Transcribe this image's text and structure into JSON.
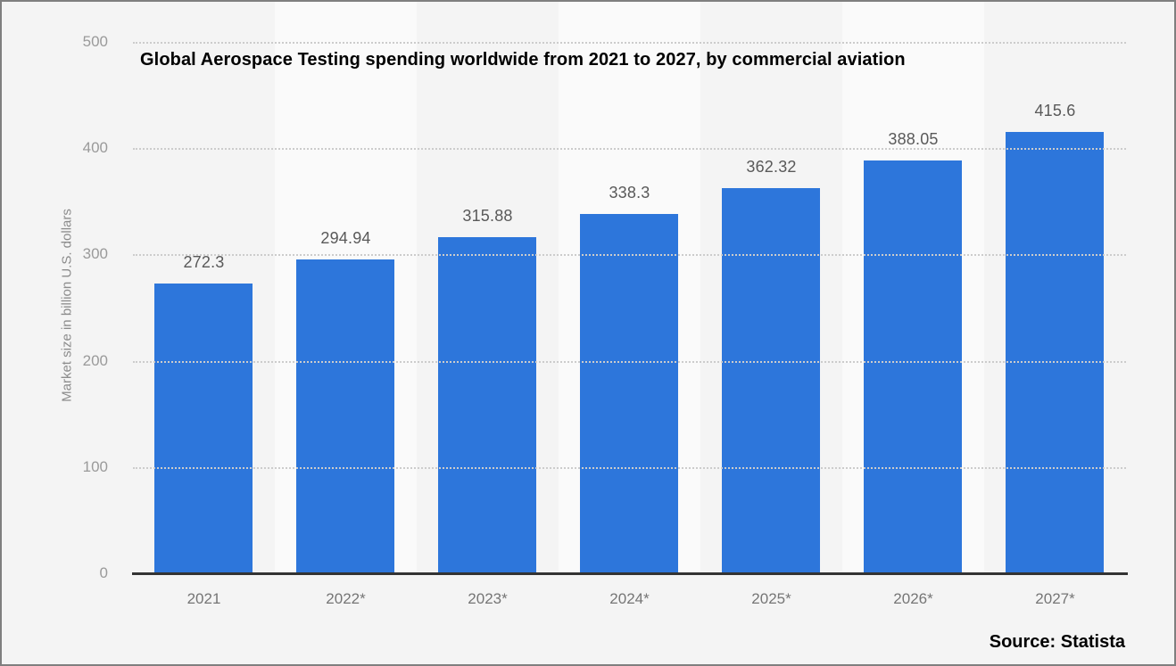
{
  "title": "Global Aerospace Testing spending worldwide from 2021 to 2027, by commercial aviation",
  "source_label": "Source: Statista",
  "y_axis": {
    "title": "Market size in billion U.S. dollars",
    "ticks": [
      500,
      400,
      300,
      200,
      100,
      0
    ]
  },
  "colors": {
    "bar": "#2d76db",
    "background": "#f4f4f4",
    "alt_band": "#fafafa",
    "gridline": "#cccccc",
    "axis_line": "#333333",
    "value_label": "#595959",
    "x_tick": "#757575",
    "y_tick": "#9a9a9a"
  },
  "chart_data": {
    "type": "bar",
    "title": "Global Aerospace Testing spending worldwide from 2021 to 2027, by commercial aviation",
    "categories": [
      "2021",
      "2022*",
      "2023*",
      "2024*",
      "2025*",
      "2026*",
      "2027*"
    ],
    "values": [
      272.3,
      294.94,
      315.88,
      338.3,
      362.32,
      388.05,
      415.6
    ],
    "value_labels": [
      "272.3",
      "294.94",
      "315.88",
      "338.3",
      "362.32",
      "388.05",
      "415.6"
    ],
    "xlabel": "",
    "ylabel": "Market size in billion U.S. dollars",
    "ylim": [
      0,
      500
    ],
    "ytick_step": 100,
    "grid": "dotted horizontal",
    "legend": "none",
    "bar_color": "#2d76db",
    "source": "Source: Statista"
  }
}
